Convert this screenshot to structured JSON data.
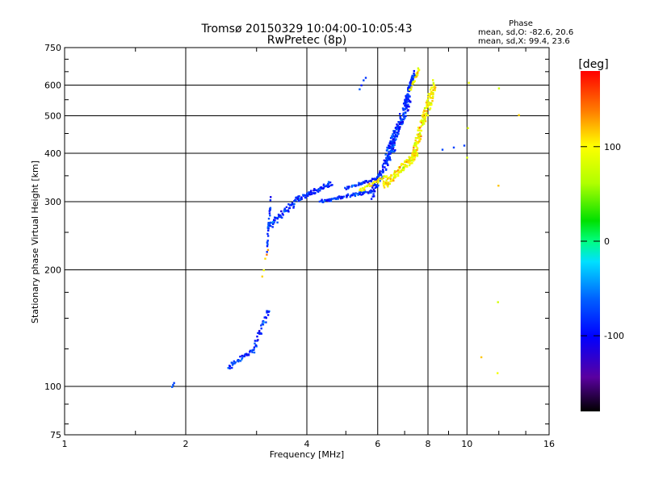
{
  "chart_data": {
    "type": "scatter",
    "title": "Tromsø 20150329 10:04:00-10:05:43",
    "subtitle": "RwPretec (8p)",
    "xlabel": "Frequency [MHz]",
    "ylabel": "Stationary phase Virtual Height [km]",
    "x_scale": "log",
    "y_scale": "log",
    "xlim": [
      1,
      16
    ],
    "ylim": [
      75,
      750
    ],
    "x_ticks": [
      1,
      2,
      4,
      6,
      8,
      10,
      16
    ],
    "x_tick_labels": [
      "1",
      "2",
      "4",
      "6",
      "8",
      "10",
      "16"
    ],
    "y_ticks": [
      75,
      100,
      200,
      300,
      400,
      500,
      600,
      750
    ],
    "y_tick_labels": [
      "75",
      "100",
      "200",
      "300",
      "400",
      "500",
      "600",
      "750"
    ],
    "grid": true,
    "phase_info": {
      "title": "Phase",
      "line_o": "mean, sd,O: -82.6, 20.6",
      "line_x": "mean, sd,X: 99.4, 23.6"
    },
    "colorbar": {
      "label": "[deg]",
      "range": [
        -180,
        180
      ],
      "ticks": [
        100,
        0,
        -100
      ],
      "tick_labels": [
        "100",
        "0",
        "-100"
      ]
    },
    "series": [
      {
        "mode": "O",
        "phase_mean": -82.6,
        "phase_sd": 20.6,
        "traces": [
          {
            "f0": 1.85,
            "f1": 1.87,
            "h0": 100,
            "h1": 102,
            "n": 3
          },
          {
            "f0": 2.55,
            "f1": 2.95,
            "h0": 112,
            "h1": 125,
            "n": 40
          },
          {
            "f0": 2.95,
            "f1": 3.22,
            "h0": 125,
            "h1": 158,
            "n": 35
          },
          {
            "f0": 3.18,
            "f1": 3.25,
            "h0": 230,
            "h1": 300,
            "n": 25
          },
          {
            "f0": 3.2,
            "f1": 3.8,
            "h0": 258,
            "h1": 305,
            "n": 60
          },
          {
            "f0": 3.8,
            "f1": 4.6,
            "h0": 305,
            "h1": 335,
            "n": 70
          },
          {
            "f0": 4.3,
            "f1": 5.8,
            "h0": 300,
            "h1": 320,
            "n": 80
          },
          {
            "f0": 5.0,
            "f1": 6.0,
            "h0": 325,
            "h1": 345,
            "n": 40
          },
          {
            "f0": 5.8,
            "f1": 6.6,
            "h0": 315,
            "h1": 420,
            "n": 90
          },
          {
            "f0": 6.3,
            "f1": 7.2,
            "h0": 390,
            "h1": 560,
            "n": 160
          },
          {
            "f0": 7.0,
            "f1": 7.4,
            "h0": 540,
            "h1": 650,
            "n": 60
          },
          {
            "f0": 5.4,
            "f1": 5.6,
            "h0": 590,
            "h1": 630,
            "n": 4
          },
          {
            "f0": 8.7,
            "f1": 9.8,
            "h0": 410,
            "h1": 420,
            "n": 3
          }
        ]
      },
      {
        "mode": "X",
        "phase_mean": 99.4,
        "phase_sd": 23.6,
        "traces": [
          {
            "f0": 3.1,
            "f1": 3.2,
            "h0": 190,
            "h1": 230,
            "n": 5
          },
          {
            "f0": 5.4,
            "f1": 6.3,
            "h0": 320,
            "h1": 350,
            "n": 30
          },
          {
            "f0": 6.2,
            "f1": 7.5,
            "h0": 330,
            "h1": 400,
            "n": 110
          },
          {
            "f0": 7.3,
            "f1": 8.3,
            "h0": 390,
            "h1": 600,
            "n": 150
          },
          {
            "f0": 7.2,
            "f1": 7.6,
            "h0": 580,
            "h1": 660,
            "n": 25
          },
          {
            "f0": 10.0,
            "f1": 10.1,
            "h0": 365,
            "h1": 630,
            "n": 3
          },
          {
            "f0": 11.9,
            "f1": 12.0,
            "h0": 105,
            "h1": 610,
            "n": 4
          },
          {
            "f0": 13.4,
            "f1": 13.5,
            "h0": 500,
            "h1": 505,
            "n": 1
          },
          {
            "f0": 10.8,
            "f1": 10.9,
            "h0": 118,
            "h1": 120,
            "n": 1
          }
        ]
      }
    ]
  }
}
